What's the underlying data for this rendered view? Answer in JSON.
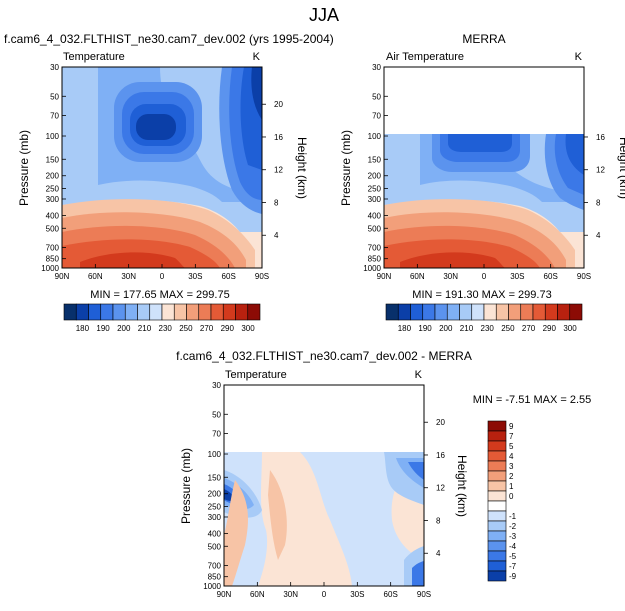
{
  "title": "JJA",
  "chart_data": [
    {
      "type": "heatmap",
      "header": "f.cam6_4_032.FLTHIST_ne30.cam7_dev.002 (yrs 1995-2004)",
      "left_label": "Temperature",
      "units": "K",
      "xlabel": "",
      "ylabel": "Pressure (mb)",
      "ylabel_right": "Height (km)",
      "x_ticks": [
        "90N",
        "60N",
        "30N",
        "0",
        "30S",
        "60S",
        "90S"
      ],
      "y_ticks": [
        "30",
        "50",
        "70",
        "100",
        "150",
        "200",
        "250",
        "300",
        "400",
        "500",
        "700",
        "850",
        "1000"
      ],
      "height_ticks": [
        "20",
        "16",
        "12",
        "8",
        "4"
      ],
      "stats": "MIN = 177.65   MAX = 299.75",
      "colorbar_labels": [
        "180",
        "190",
        "200",
        "210",
        "230",
        "250",
        "270",
        "290",
        "300"
      ],
      "colors": [
        "#08306b",
        "#0b3fa8",
        "#1f5fd6",
        "#3b78e7",
        "#5b93ee",
        "#7fb0f5",
        "#a8cbf7",
        "#cfe2fb",
        "#fbe4d5",
        "#f7c4a6",
        "#f29f7a",
        "#ec7c56",
        "#e45a36",
        "#d33a1d",
        "#b8210f",
        "#8c0b05"
      ]
    },
    {
      "type": "heatmap",
      "header": "MERRA",
      "left_label": "Air Temperature",
      "units": "K",
      "xlabel": "",
      "ylabel": "Pressure (mb)",
      "ylabel_right": "Height (km)",
      "x_ticks": [
        "90N",
        "60N",
        "30N",
        "0",
        "30S",
        "60S",
        "90S"
      ],
      "y_ticks": [
        "30",
        "50",
        "70",
        "100",
        "150",
        "200",
        "250",
        "300",
        "400",
        "500",
        "700",
        "850",
        "1000"
      ],
      "height_ticks": [
        "16",
        "12",
        "8",
        "4"
      ],
      "stats": "MIN = 191.30   MAX = 299.73",
      "colorbar_labels": [
        "180",
        "190",
        "200",
        "210",
        "230",
        "250",
        "270",
        "290",
        "300"
      ]
    },
    {
      "type": "heatmap",
      "header": "f.cam6_4_032.FLTHIST_ne30.cam7_dev.002 - MERRA",
      "left_label": "Temperature",
      "units": "K",
      "xlabel": "",
      "ylabel": "Pressure (mb)",
      "ylabel_right": "Height (km)",
      "x_ticks": [
        "90N",
        "60N",
        "30N",
        "0",
        "30S",
        "60S",
        "90S"
      ],
      "y_ticks": [
        "30",
        "50",
        "70",
        "100",
        "150",
        "200",
        "250",
        "300",
        "400",
        "500",
        "700",
        "850",
        "1000"
      ],
      "height_ticks": [
        "20",
        "16",
        "12",
        "8",
        "4"
      ],
      "stats": "MIN =  -7.51  MAX =   2.55",
      "colorbar_labels": [
        "9",
        "7",
        "5",
        "4",
        "3",
        "2",
        "1",
        "0",
        "-1",
        "-2",
        "-3",
        "-4",
        "-5",
        "-7",
        "-9"
      ]
    }
  ]
}
